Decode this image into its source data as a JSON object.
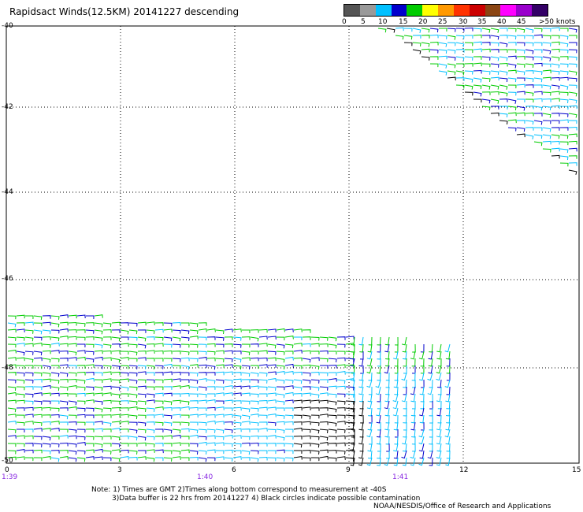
{
  "title": "Rapidsact Winds(12.5KM) 20141227 descending",
  "legend": {
    "colors": [
      "#555555",
      "#999999",
      "#00c0ff",
      "#0000cc",
      "#00cc00",
      "#ffff00",
      "#ff9900",
      "#ff3300",
      "#cc0000",
      "#8b4513",
      "#ff00ff",
      "#9900cc",
      "#330066"
    ],
    "labels": [
      "0",
      "5",
      "10",
      "15",
      "20",
      "25",
      "30",
      "35",
      "40",
      "45",
      ">50 knots"
    ]
  },
  "map": {
    "lat_ticks": [
      "-40",
      "-42",
      "-44",
      "-46",
      "-48",
      "-50"
    ],
    "lon_ticks": [
      "0",
      "3",
      "6",
      "9",
      "12",
      "15"
    ],
    "time_ticks": [
      "1:39",
      "1:40",
      "1:41"
    ]
  },
  "notes": {
    "line1": "Note: 1) Times are GMT 2)Times along bottom correspond to measurement at -40S",
    "line2": "3)Data buffer is 22 hrs from 20141227 4) Black circles indicate possible contamination",
    "credit": "NOAA/NESDIS/Office of Research and Applications"
  }
}
